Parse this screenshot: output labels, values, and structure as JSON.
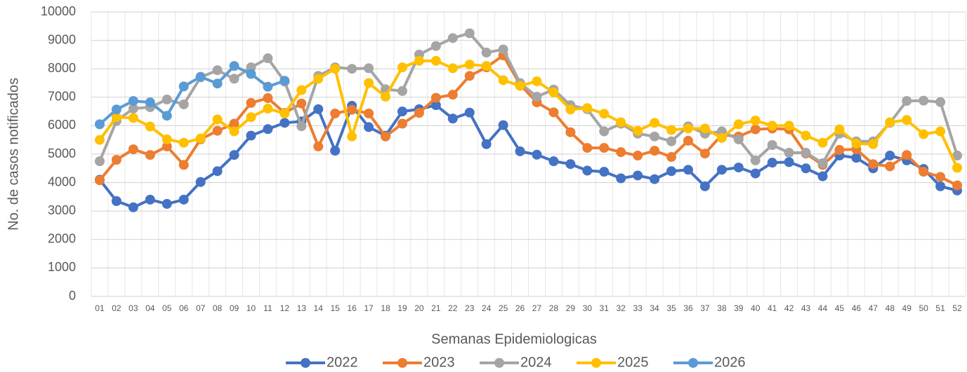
{
  "chart_data": {
    "type": "line",
    "y_label": "No. de casos notificados",
    "x_label": "Semanas Epidemiologicas",
    "categories": [
      "01",
      "02",
      "03",
      "04",
      "05",
      "06",
      "07",
      "08",
      "09",
      "10",
      "11",
      "12",
      "13",
      "14",
      "15",
      "16",
      "17",
      "18",
      "19",
      "20",
      "21",
      "22",
      "23",
      "24",
      "25",
      "26",
      "27",
      "28",
      "29",
      "30",
      "31",
      "32",
      "33",
      "34",
      "35",
      "36",
      "37",
      "38",
      "39",
      "40",
      "41",
      "42",
      "43",
      "44",
      "45",
      "46",
      "47",
      "48",
      "49",
      "50",
      "51",
      "52"
    ],
    "ylim": [
      0,
      10000
    ],
    "yticks": [
      0,
      1000,
      2000,
      3000,
      4000,
      5000,
      6000,
      7000,
      8000,
      9000,
      10000
    ],
    "grid": true,
    "legend": "bottom",
    "series": [
      {
        "name": "2022",
        "color": "#4472c4",
        "values": [
          4100,
          3350,
          3130,
          3400,
          3250,
          3400,
          4020,
          4400,
          4970,
          5650,
          5880,
          6100,
          6150,
          6580,
          5120,
          6700,
          5950,
          5650,
          6500,
          6580,
          6720,
          6250,
          6460,
          5350,
          6020,
          5100,
          4980,
          4750,
          4650,
          4420,
          4380,
          4150,
          4250,
          4120,
          4400,
          4450,
          3870,
          4450,
          4530,
          4320,
          4700,
          4720,
          4500,
          4220,
          4950,
          4870,
          4500,
          4950,
          4780,
          4480,
          3870,
          3720
        ]
      },
      {
        "name": "2023",
        "color": "#ed7d31",
        "values": [
          4080,
          4800,
          5170,
          4970,
          5270,
          4620,
          5520,
          5820,
          6070,
          6800,
          6970,
          6450,
          6780,
          5270,
          6430,
          6560,
          6430,
          5620,
          6070,
          6450,
          6980,
          7090,
          7750,
          8050,
          8470,
          7450,
          6820,
          6470,
          5770,
          5220,
          5220,
          5070,
          4950,
          5120,
          4900,
          5470,
          5020,
          5680,
          5620,
          5870,
          5900,
          5870,
          5020,
          4620,
          5150,
          5170,
          4650,
          4570,
          4970,
          4380,
          4200,
          3900
        ]
      },
      {
        "name": "2024",
        "color": "#a5a5a5",
        "values": [
          4750,
          6170,
          6600,
          6650,
          6920,
          6750,
          7700,
          7950,
          7650,
          8050,
          8370,
          7550,
          5980,
          7750,
          8050,
          8000,
          8020,
          7280,
          7220,
          8500,
          8800,
          9080,
          9250,
          8570,
          8680,
          7500,
          7020,
          7270,
          6720,
          6580,
          5800,
          6070,
          5720,
          5620,
          5450,
          5980,
          5720,
          5800,
          5520,
          4780,
          5320,
          5050,
          5050,
          4680,
          5720,
          5450,
          5450,
          6100,
          6870,
          6880,
          6830,
          4950
        ]
      },
      {
        "name": "2025",
        "color": "#ffc000",
        "values": [
          5500,
          6300,
          6270,
          5970,
          5520,
          5400,
          5550,
          6220,
          5800,
          6300,
          6600,
          6430,
          7250,
          7650,
          8000,
          5620,
          7500,
          7020,
          8050,
          8280,
          8280,
          8020,
          8150,
          8100,
          7600,
          7400,
          7560,
          7170,
          6570,
          6620,
          6420,
          6120,
          5820,
          6100,
          5850,
          5900,
          5900,
          5570,
          6050,
          6180,
          6000,
          6000,
          5650,
          5400,
          5870,
          5370,
          5350,
          6120,
          6200,
          5700,
          5800,
          4520
        ]
      },
      {
        "name": "2026",
        "color": "#5b9bd5",
        "values": [
          6050,
          6570,
          6870,
          6820,
          6350,
          7380,
          7720,
          7480,
          8100,
          7820,
          7370,
          7580,
          null,
          null,
          null,
          null,
          null,
          null,
          null,
          null,
          null,
          null,
          null,
          null,
          null,
          null,
          null,
          null,
          null,
          null,
          null,
          null,
          null,
          null,
          null,
          null,
          null,
          null,
          null,
          null,
          null,
          null,
          null,
          null,
          null,
          null,
          null,
          null,
          null,
          null,
          null,
          null
        ]
      }
    ]
  }
}
